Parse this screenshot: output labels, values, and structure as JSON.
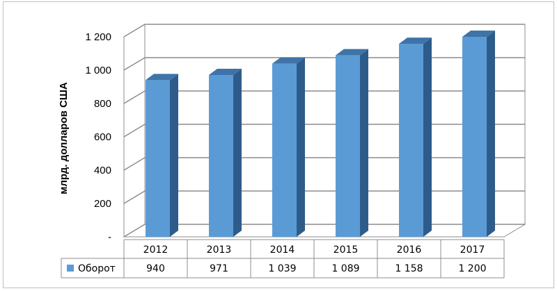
{
  "chart_data": {
    "type": "bar",
    "title": "",
    "xlabel": "",
    "ylabel": "млрд. долларов США",
    "categories": [
      "2012",
      "2013",
      "2014",
      "2015",
      "2016",
      "2017"
    ],
    "series": [
      {
        "name": "Оборот",
        "values": [
          940,
          971,
          1039,
          1089,
          1158,
          1200
        ],
        "value_labels": [
          "940",
          "971",
          "1 039",
          "1 089",
          "1 158",
          "1 200"
        ],
        "color": "#5b9bd5"
      }
    ],
    "ylim": [
      0,
      1200
    ],
    "y_ticks": [
      0,
      200,
      400,
      600,
      800,
      1000,
      1200
    ],
    "y_tick_labels": [
      "-",
      "200",
      "400",
      "600",
      "800",
      "1 000",
      "1 200"
    ],
    "grid": true,
    "three_d": true,
    "legend_placement": "data-table",
    "colors": {
      "bar_front": "#5b9bd5",
      "bar_side": "#2e5c8a",
      "bar_top": "#3e74a8",
      "grid": "#8c8c8c"
    }
  }
}
